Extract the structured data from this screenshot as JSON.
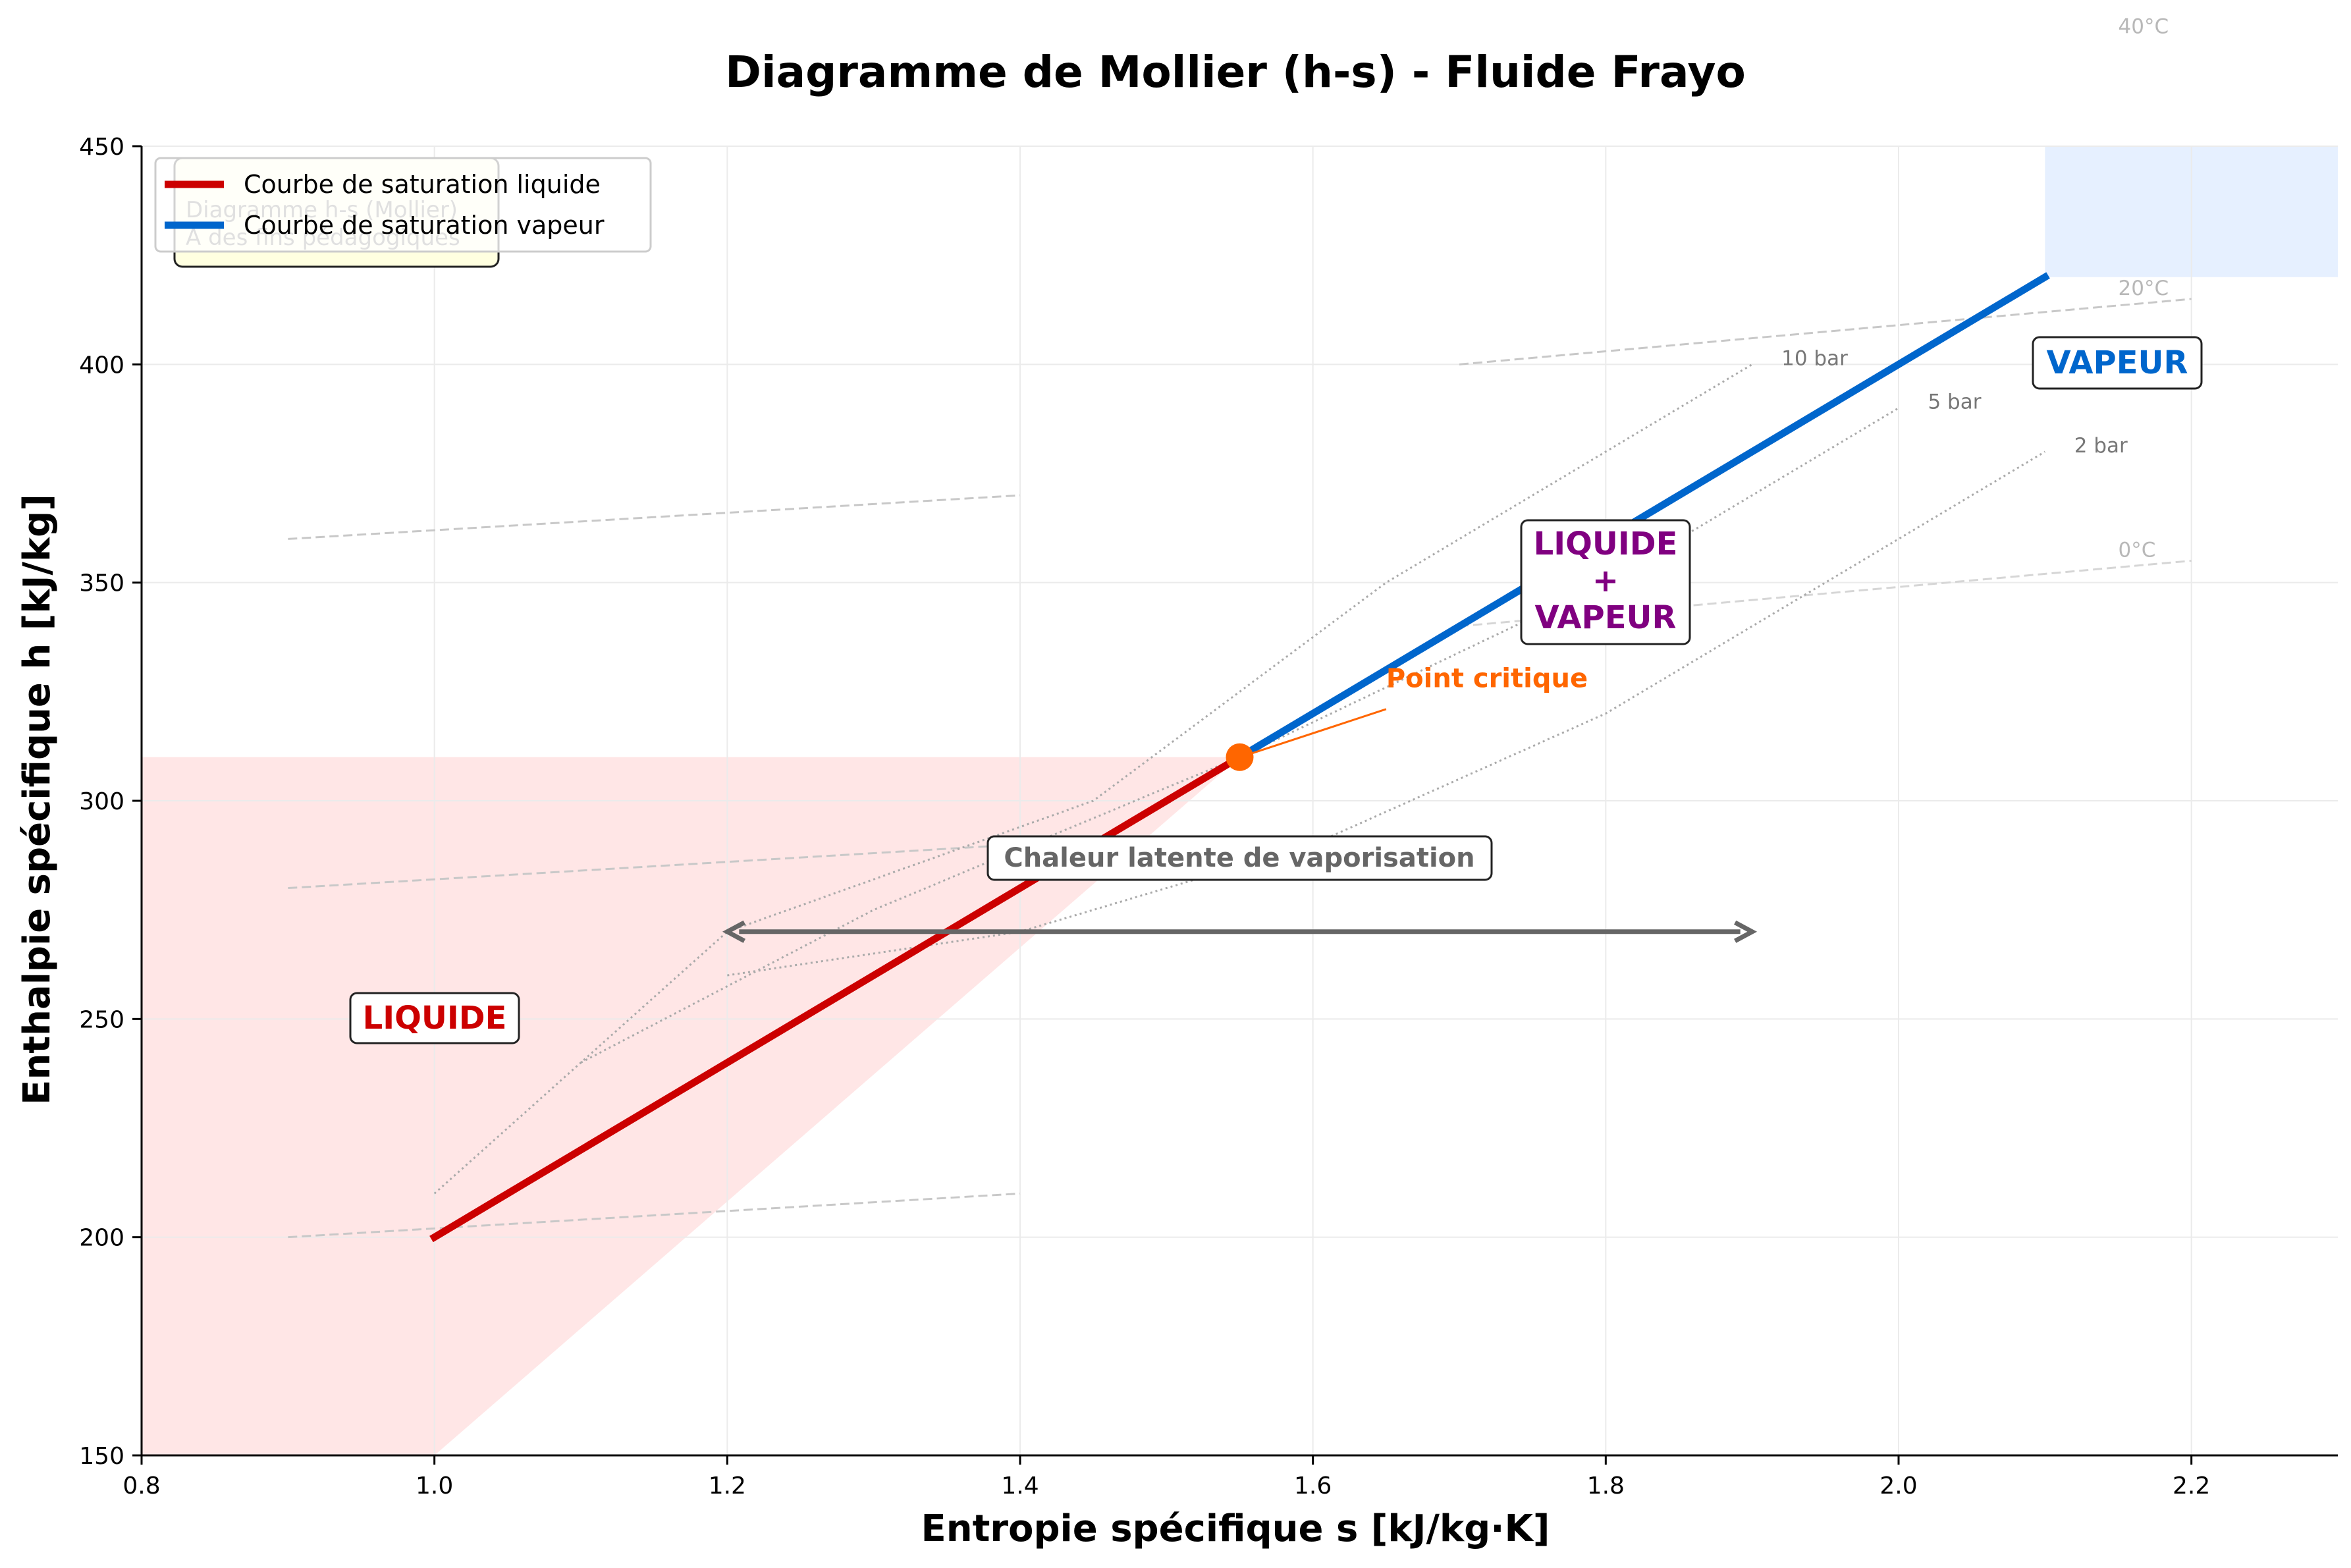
{
  "chart_data": {
    "type": "line",
    "title": "Diagramme de Mollier (h-s) - Fluide Frayo",
    "xlabel": "Entropie spécifique s [kJ/kg·K]",
    "ylabel": "Enthalpie spécifique h [kJ/kg]",
    "xlim": [
      0.8,
      2.3
    ],
    "ylim": [
      150,
      450
    ],
    "xticks": [
      "0.8",
      "1.0",
      "1.2",
      "1.4",
      "1.6",
      "1.8",
      "2.0",
      "2.2"
    ],
    "yticks": [
      "150",
      "200",
      "250",
      "300",
      "350",
      "400",
      "450"
    ],
    "grid": true,
    "legend_position": "top-left",
    "series": [
      {
        "name": "Courbe de saturation liquide",
        "color": "#cc0000",
        "x": [
          1.0,
          1.55
        ],
        "y": [
          200,
          310
        ]
      },
      {
        "name": "Courbe de saturation vapeur",
        "color": "#0066cc",
        "x": [
          1.55,
          2.1
        ],
        "y": [
          310,
          420
        ]
      }
    ],
    "critical_point": {
      "label": "Point critique",
      "x": 1.55,
      "y": 310,
      "color": "#ff6600"
    },
    "isobars": [
      {
        "label": "10 bar",
        "x": [
          1.0,
          1.2,
          1.45,
          1.65,
          1.9
        ],
        "y": [
          210,
          270,
          300,
          350,
          400
        ]
      },
      {
        "label": "5 bar",
        "x": [
          1.1,
          1.3,
          1.55,
          1.8,
          2.0
        ],
        "y": [
          240,
          275,
          310,
          350,
          390
        ]
      },
      {
        "label": "2 bar",
        "x": [
          1.2,
          1.4,
          1.6,
          1.8,
          2.1
        ],
        "y": [
          260,
          270,
          290,
          320,
          380
        ]
      }
    ],
    "isotherms": [
      {
        "label": "0°C",
        "x": [
          0.9,
          1.4
        ],
        "y": [
          200,
          210
        ],
        "x2": [
          1.7,
          2.2
        ],
        "y2": [
          340,
          355
        ]
      },
      {
        "label": "",
        "x": [
          0.9,
          1.4
        ],
        "y": [
          280,
          290
        ]
      },
      {
        "label": "",
        "x": [
          0.9,
          1.4
        ],
        "y": [
          360,
          370
        ]
      },
      {
        "label": "20°C",
        "x": [
          1.7,
          2.2
        ],
        "y": [
          400,
          415
        ]
      },
      {
        "label": "40°C",
        "x": [],
        "y": []
      }
    ],
    "regions": {
      "liquid": {
        "label": "LIQUIDE",
        "color": "#cc0000",
        "fill": "#ffe6e6"
      },
      "mixture": {
        "label": [
          "LIQUIDE",
          "+",
          "VAPEUR"
        ],
        "color": "#800080"
      },
      "vapor": {
        "label": "VAPEUR",
        "color": "#0066cc",
        "fill": "#e6f0ff"
      }
    },
    "latent_heat": {
      "label": "Chaleur latente de vaporisation",
      "x_start": 1.2,
      "x_end": 1.9,
      "y": 270,
      "color": "#666666"
    },
    "info_box": {
      "lines": [
        "Diagramme h-s (Mollier)",
        "À des fins pédagogiques"
      ],
      "fill": "#ffffe0"
    }
  }
}
